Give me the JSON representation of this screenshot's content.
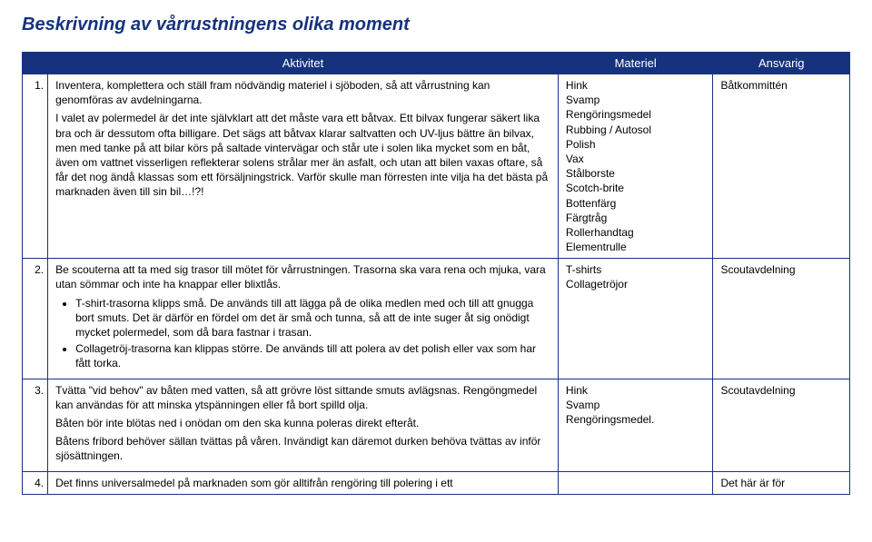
{
  "title": "Beskrivning av vårrustningens olika moment",
  "headers": {
    "activity": "Aktivitet",
    "material": "Materiel",
    "responsible": "Ansvarig"
  },
  "rows": {
    "r1": {
      "num": "1.",
      "p1": "Inventera, komplettera och ställ fram nödvändig materiel i sjöboden, så att vårrustning kan genomföras av avdelningarna.",
      "p2": "I valet av polermedel är det inte självklart att det måste vara ett båtvax. Ett bilvax fungerar säkert lika bra och är dessutom ofta billigare. Det sägs att båtvax klarar saltvatten och UV-ljus bättre än bilvax, men med tanke på att bilar körs på saltade vintervägar och står ute i solen lika mycket som en båt, även om vattnet visserligen reflekterar solens strålar mer än asfalt, och utan att bilen vaxas oftare, så får det nog ändå klassas som ett försäljningstrick. Varför skulle man förresten inte vilja ha det bästa på marknaden även till sin bil…!?!",
      "mat": [
        "Hink",
        "Svamp",
        "Rengöringsmedel",
        "Rubbing / Autosol",
        "Polish",
        "Vax",
        "Stålborste",
        "Scotch-brite",
        "Bottenfärg",
        "Färgtråg",
        "Rollerhandtag",
        "Elementrulle"
      ],
      "resp": "Båtkommittén"
    },
    "r2": {
      "num": "2.",
      "p1": "Be scouterna att ta med sig trasor till mötet för vårrustningen. Trasorna ska vara rena och mjuka, vara utan sömmar och inte ha knappar eller blixtlås.",
      "b1": "T-shirt-trasorna klipps små. De används till att lägga på de olika medlen med och till att gnugga bort smuts. Det är därför en fördel om det är små och tunna, så att de inte suger åt sig onödigt mycket polermedel, som då bara fastnar i trasan.",
      "b2": "Collagetröj-trasorna kan klippas större. De används till att polera av det polish eller vax som har fått torka.",
      "mat": [
        "T-shirts",
        "Collagetröjor"
      ],
      "resp": "Scoutavdelning"
    },
    "r3": {
      "num": "3.",
      "p1": "Tvätta \"vid behov\" av båten med vatten, så att grövre löst sittande smuts avlägsnas. Rengöngmedel kan användas för att minska ytspänningen eller få bort spilld olja.",
      "p2": "Båten bör inte blötas ned i onödan om den ska kunna poleras direkt efteråt.",
      "p3": "Båtens fribord behöver sällan tvättas på våren. Invändigt kan däremot durken behöva tvättas av inför sjösättningen.",
      "mat": [
        "Hink",
        "Svamp",
        "Rengöringsmedel."
      ],
      "resp": "Scoutavdelning"
    },
    "r4": {
      "num": "4.",
      "p1": "Det finns universalmedel på marknaden som gör alltifrån rengöring till polering i ett",
      "resp": "Det här är för"
    }
  }
}
